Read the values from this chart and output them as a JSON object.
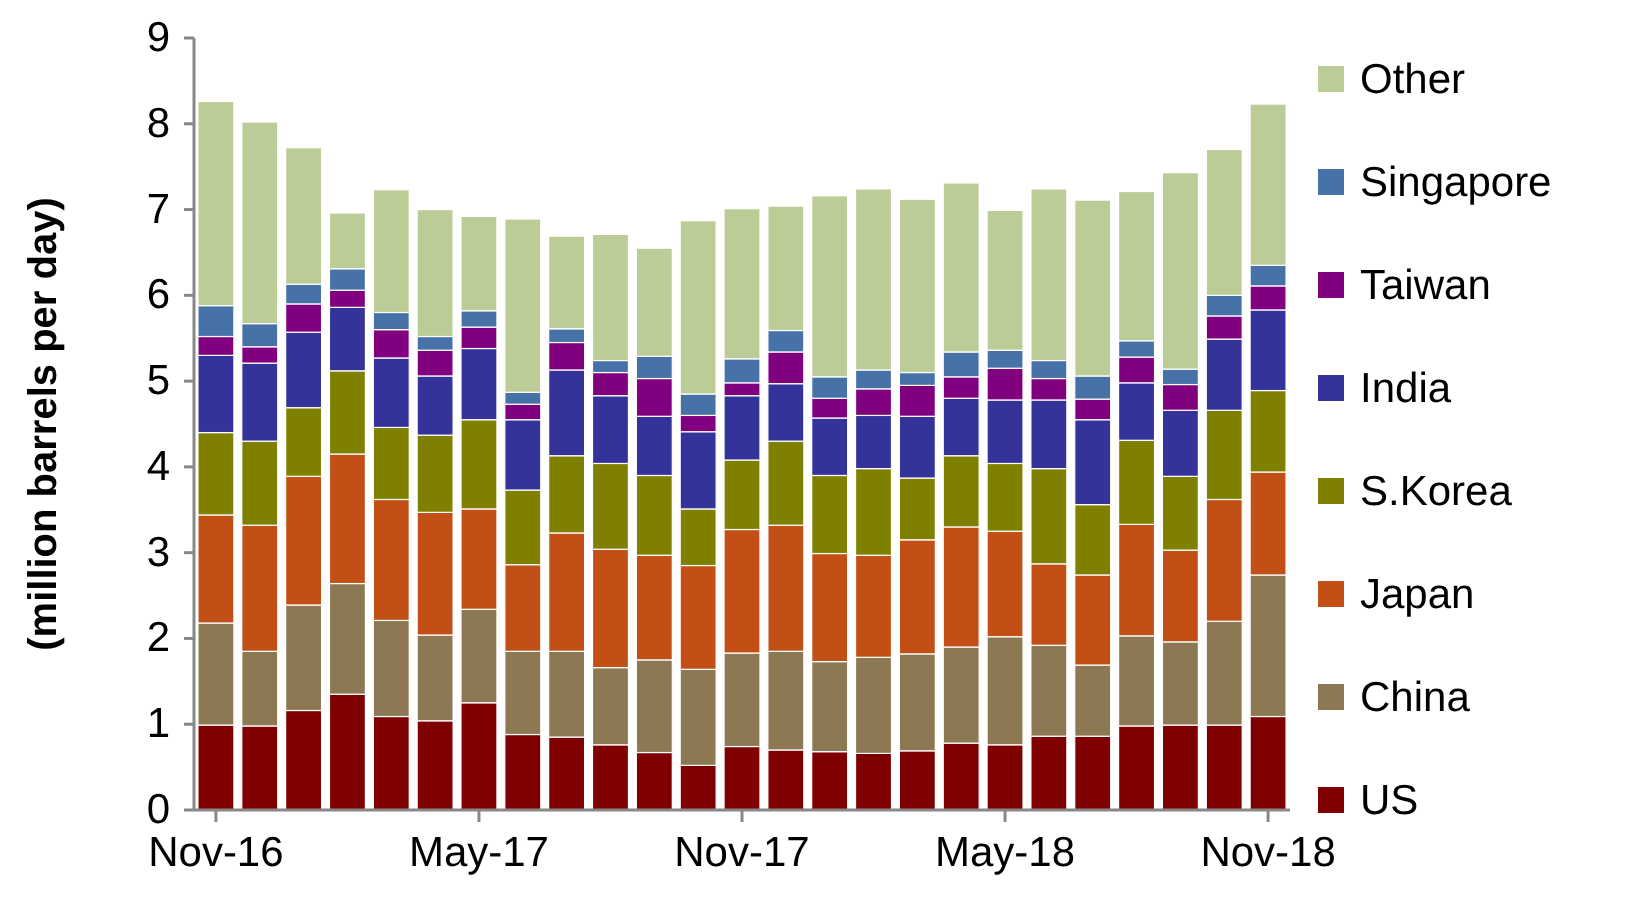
{
  "chart_data": {
    "type": "bar",
    "stacked": true,
    "ylabel": "(million barrels per day)",
    "ylim": [
      0,
      9
    ],
    "yticks": [
      0,
      1,
      2,
      3,
      4,
      5,
      6,
      7,
      8,
      9
    ],
    "grid": false,
    "legend": "right",
    "categories": [
      "Nov-16",
      null,
      null,
      null,
      null,
      null,
      "May-17",
      null,
      null,
      null,
      null,
      null,
      "Nov-17",
      null,
      null,
      null,
      null,
      null,
      "May-18",
      null,
      null,
      null,
      null,
      null,
      "Nov-18"
    ],
    "series": [
      {
        "name": "US",
        "color": "#7f0000",
        "values": [
          0.99,
          0.98,
          1.16,
          1.35,
          1.09,
          1.04,
          1.25,
          0.88,
          0.85,
          0.76,
          0.67,
          0.52,
          0.74,
          0.7,
          0.68,
          0.66,
          0.69,
          0.78,
          0.76,
          0.86,
          0.86,
          0.98,
          0.99,
          0.99,
          1.09
        ]
      },
      {
        "name": "China",
        "color": "#8c7853",
        "values": [
          1.19,
          0.87,
          1.23,
          1.29,
          1.12,
          1.0,
          1.09,
          0.97,
          1.0,
          0.9,
          1.08,
          1.12,
          1.09,
          1.15,
          1.05,
          1.12,
          1.13,
          1.12,
          1.26,
          1.06,
          0.83,
          1.05,
          0.97,
          1.21,
          1.65
        ]
      },
      {
        "name": "Japan",
        "color": "#c24f16",
        "values": [
          1.26,
          1.47,
          1.5,
          1.51,
          1.41,
          1.43,
          1.17,
          1.01,
          1.38,
          1.38,
          1.22,
          1.21,
          1.44,
          1.47,
          1.26,
          1.19,
          1.33,
          1.4,
          1.23,
          0.95,
          1.05,
          1.3,
          1.07,
          1.42,
          1.2
        ]
      },
      {
        "name": "S.Korea",
        "color": "#808000",
        "values": [
          0.96,
          0.98,
          0.8,
          0.97,
          0.84,
          0.9,
          1.04,
          0.87,
          0.9,
          1.0,
          0.93,
          0.66,
          0.81,
          0.98,
          0.91,
          1.01,
          0.72,
          0.83,
          0.79,
          1.11,
          0.82,
          0.98,
          0.86,
          1.04,
          0.95
        ]
      },
      {
        "name": "India",
        "color": "#333399",
        "values": [
          0.9,
          0.91,
          0.88,
          0.74,
          0.81,
          0.69,
          0.83,
          0.82,
          1.0,
          0.79,
          0.69,
          0.9,
          0.75,
          0.67,
          0.67,
          0.62,
          0.72,
          0.67,
          0.74,
          0.8,
          0.99,
          0.67,
          0.77,
          0.83,
          0.94
        ]
      },
      {
        "name": "Taiwan",
        "color": "#800080",
        "values": [
          0.22,
          0.19,
          0.33,
          0.2,
          0.33,
          0.3,
          0.25,
          0.18,
          0.32,
          0.27,
          0.44,
          0.19,
          0.15,
          0.37,
          0.23,
          0.31,
          0.36,
          0.25,
          0.37,
          0.25,
          0.24,
          0.3,
          0.3,
          0.27,
          0.28
        ]
      },
      {
        "name": "Singapore",
        "color": "#4672a8",
        "values": [
          0.36,
          0.27,
          0.23,
          0.25,
          0.2,
          0.16,
          0.19,
          0.14,
          0.16,
          0.14,
          0.26,
          0.25,
          0.28,
          0.25,
          0.25,
          0.22,
          0.15,
          0.29,
          0.21,
          0.21,
          0.27,
          0.19,
          0.18,
          0.24,
          0.24
        ]
      },
      {
        "name": "Other",
        "color": "#bccc96",
        "values": [
          2.38,
          2.35,
          1.59,
          0.65,
          1.43,
          1.48,
          1.1,
          2.02,
          1.08,
          1.47,
          1.26,
          2.02,
          1.75,
          1.45,
          2.11,
          2.11,
          2.02,
          1.97,
          1.63,
          2.0,
          2.05,
          1.74,
          2.29,
          1.7,
          1.88
        ]
      }
    ]
  }
}
